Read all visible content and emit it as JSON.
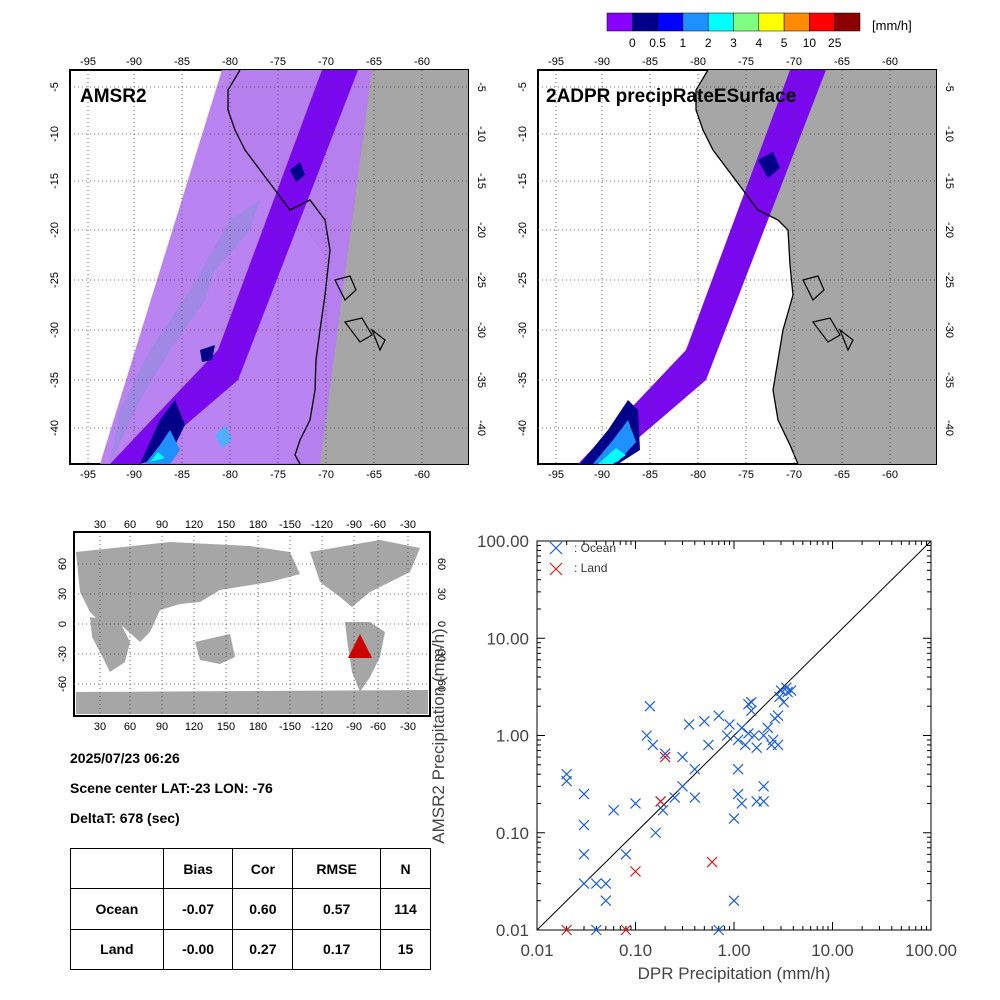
{
  "colorbar": {
    "unit": "[mm/h]",
    "labels": [
      "0",
      "0.5",
      "1",
      "2",
      "3",
      "4",
      "5",
      "10",
      "25"
    ],
    "colors": [
      "#8a00ff",
      "#00008b",
      "#0000ff",
      "#1e90ff",
      "#00ffff",
      "#7fff7f",
      "#ffff00",
      "#ff8c00",
      "#ff0000",
      "#8b0000"
    ]
  },
  "maps": [
    {
      "title": "AMSR2",
      "lon_ticks": [
        "-95",
        "-90",
        "-85",
        "-80",
        "-75",
        "-70",
        "-65",
        "-60"
      ],
      "lat_ticks": [
        "-5",
        "-10",
        "-15",
        "-20",
        "-25",
        "-30",
        "-35",
        "-40"
      ]
    },
    {
      "title": "2ADPR precipRateESurface",
      "lon_ticks": [
        "-95",
        "-90",
        "-85",
        "-80",
        "-75",
        "-70",
        "-65",
        "-60"
      ],
      "lat_ticks": [
        "-5",
        "-10",
        "-15",
        "-20",
        "-25",
        "-30",
        "-35",
        "-40"
      ]
    }
  ],
  "world_map": {
    "lon_ticks": [
      "30",
      "60",
      "90",
      "120",
      "150",
      "180",
      "-150",
      "-120",
      "-90",
      "-60",
      "-30"
    ],
    "lat_ticks": [
      "60",
      "30",
      "0",
      "-30",
      "-60"
    ],
    "marker": {
      "label": "scene-center",
      "lat": -23,
      "lon": -76,
      "color": "#cc0000"
    }
  },
  "info": {
    "datetime": "2025/07/23 06:26",
    "scene_center": "Scene center LAT:-23   LON: -76",
    "deltat": "DeltaT:  678 (sec)"
  },
  "stats_table": {
    "headers": [
      "",
      "Bias",
      "Cor",
      "RMSE",
      "N"
    ],
    "rows": [
      [
        "Ocean",
        "-0.07",
        "0.60",
        "0.57",
        "114"
      ],
      [
        "Land",
        "-0.00",
        "0.27",
        "0.17",
        "15"
      ]
    ]
  },
  "chart_data": {
    "type": "scatter",
    "xlabel": "DPR Precipitation (mm/h)",
    "ylabel": "AMSR2 Precipitation (mm/h)",
    "xscale": "log",
    "yscale": "log",
    "xlim": [
      0.01,
      100
    ],
    "ylim": [
      0.01,
      100
    ],
    "x_tick_labels": [
      "0.01",
      "0.10",
      "1.00",
      "10.00",
      "100.00"
    ],
    "y_tick_labels": [
      "0.01",
      "0.10",
      "1.00",
      "10.00",
      "100.00"
    ],
    "legend_position": "top-left",
    "series": [
      {
        "name": ": Ocean",
        "color": "#1f5fd8",
        "points": [
          [
            0.02,
            0.4
          ],
          [
            0.02,
            0.34
          ],
          [
            0.03,
            0.25
          ],
          [
            0.03,
            0.12
          ],
          [
            0.03,
            0.06
          ],
          [
            0.03,
            0.03
          ],
          [
            0.04,
            0.03
          ],
          [
            0.05,
            0.03
          ],
          [
            0.05,
            0.02
          ],
          [
            0.06,
            0.17
          ],
          [
            0.08,
            0.06
          ],
          [
            0.1,
            0.2
          ],
          [
            0.13,
            1.0
          ],
          [
            0.14,
            2.0
          ],
          [
            0.15,
            0.8
          ],
          [
            0.16,
            0.1
          ],
          [
            0.18,
            0.21
          ],
          [
            0.19,
            0.17
          ],
          [
            0.2,
            0.65
          ],
          [
            0.25,
            0.23
          ],
          [
            0.3,
            0.6
          ],
          [
            0.3,
            0.3
          ],
          [
            0.35,
            1.3
          ],
          [
            0.4,
            0.45
          ],
          [
            0.4,
            0.23
          ],
          [
            0.5,
            1.4
          ],
          [
            0.55,
            0.8
          ],
          [
            0.7,
            1.6
          ],
          [
            0.85,
            1.0
          ],
          [
            0.9,
            1.3
          ],
          [
            1.0,
            0.14
          ],
          [
            1.1,
            0.25
          ],
          [
            1.1,
            0.45
          ],
          [
            1.2,
            0.2
          ],
          [
            1.1,
            0.9
          ],
          [
            1.2,
            1.2
          ],
          [
            1.3,
            0.8
          ],
          [
            1.4,
            1.05
          ],
          [
            1.4,
            2.1
          ],
          [
            1.5,
            2.2
          ],
          [
            1.5,
            1.8
          ],
          [
            1.6,
            1.0
          ],
          [
            1.7,
            0.75
          ],
          [
            1.7,
            0.21
          ],
          [
            2.0,
            0.21
          ],
          [
            2.0,
            0.3
          ],
          [
            2.0,
            1.0
          ],
          [
            2.2,
            1.2
          ],
          [
            2.4,
            0.8
          ],
          [
            2.5,
            0.9
          ],
          [
            2.6,
            1.5
          ],
          [
            2.8,
            1.6
          ],
          [
            2.8,
            0.8
          ],
          [
            2.9,
            2.5
          ],
          [
            3.0,
            2.9
          ],
          [
            3.2,
            2.2
          ],
          [
            3.4,
            3.1
          ],
          [
            3.5,
            2.8
          ],
          [
            3.8,
            2.9
          ],
          [
            1.0,
            0.02
          ],
          [
            0.7,
            0.01
          ],
          [
            0.04,
            0.01
          ]
        ]
      },
      {
        "name": ": Land",
        "color": "#cc2222",
        "points": [
          [
            0.02,
            0.01
          ],
          [
            0.08,
            0.01
          ],
          [
            0.1,
            0.04
          ],
          [
            0.18,
            0.21
          ],
          [
            0.2,
            0.6
          ],
          [
            0.6,
            0.05
          ]
        ]
      }
    ]
  }
}
